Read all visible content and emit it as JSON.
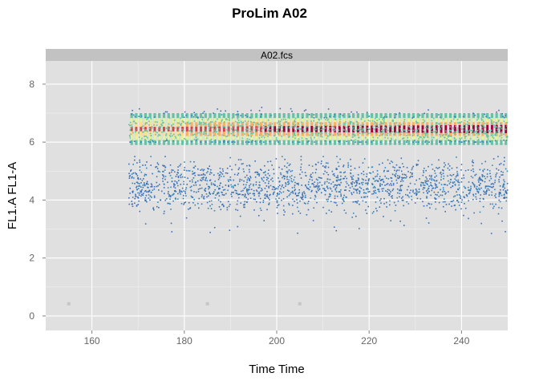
{
  "chart_data": {
    "type": "scatter",
    "title": "ProLim A02",
    "panel_strip": "A02.fcs",
    "xlabel": "Time Time",
    "ylabel": "FL1.A FL1-A",
    "xlim": [
      150,
      250
    ],
    "ylim": [
      -0.5,
      8.8
    ],
    "x_ticks": [
      "160",
      "180",
      "200",
      "220",
      "240"
    ],
    "y_ticks": [
      "0",
      "2",
      "4",
      "6",
      "8"
    ],
    "grid": true,
    "density_coloring": "spectral (blue low → red high)",
    "populations": [
      {
        "label": "high band",
        "x_range": [
          168,
          250
        ],
        "y_center": 6.45,
        "y_spread": [
          6.0,
          7.3
        ],
        "density": "high"
      },
      {
        "label": "low band",
        "x_range": [
          168,
          250
        ],
        "y_center": 4.5,
        "y_spread": [
          2.8,
          5.5
        ],
        "density": "low"
      }
    ],
    "outliers": [
      {
        "x": 155,
        "y": 0.42
      },
      {
        "x": 185,
        "y": 0.42
      },
      {
        "x": 205,
        "y": 0.42
      }
    ],
    "colors": {
      "panel_bg": "#e0e0e0",
      "strip_bg": "#c2c2c2",
      "grid": "#ffffff",
      "low_density": "#3a6fb5",
      "mid_density": "#abdda4",
      "high_density": "#9e0142"
    }
  }
}
